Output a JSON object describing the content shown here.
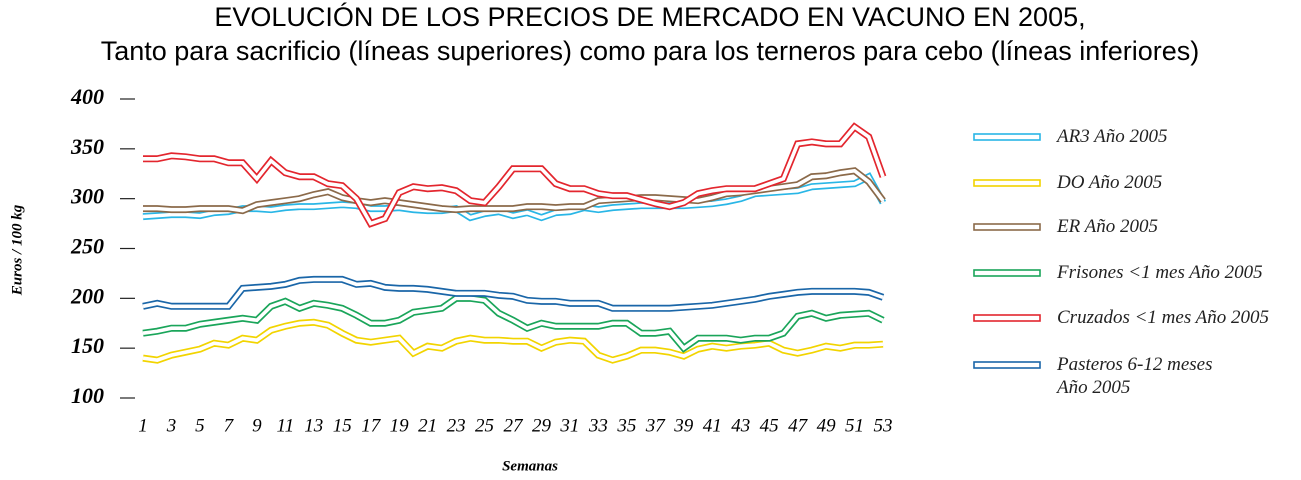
{
  "chart_data": {
    "type": "line",
    "title": "EVOLUCIÓN DE LOS PRECIOS DE MERCADO EN VACUNO EN 2005,",
    "subtitle": "Tanto para sacrificio (líneas superiores) como para los terneros para cebo (líneas inferiores)",
    "x_label": "Semanas",
    "y_label": "Euros / 100 kg",
    "x": [
      1,
      2,
      3,
      4,
      5,
      6,
      7,
      8,
      9,
      10,
      11,
      12,
      13,
      14,
      15,
      16,
      17,
      18,
      19,
      20,
      21,
      22,
      23,
      24,
      25,
      26,
      27,
      28,
      29,
      30,
      31,
      32,
      33,
      34,
      35,
      36,
      37,
      38,
      39,
      40,
      41,
      42,
      43,
      44,
      45,
      46,
      47,
      48,
      49,
      50,
      51,
      52,
      53
    ],
    "xlim": [
      1,
      53
    ],
    "xticks": [
      1,
      3,
      5,
      7,
      9,
      11,
      13,
      15,
      17,
      19,
      21,
      23,
      25,
      27,
      29,
      31,
      33,
      35,
      37,
      39,
      41,
      43,
      45,
      47,
      49,
      51,
      53
    ],
    "ylim": [
      100,
      400
    ],
    "yticks": [
      100,
      150,
      200,
      250,
      300,
      350,
      400
    ],
    "grid": false,
    "legend": "right",
    "series": [
      {
        "name": "AR3 Año 2005",
        "color": "#29b6e6",
        "values": [
          282,
          283,
          284,
          284,
          283,
          286,
          287,
          290,
          290,
          289,
          291,
          292,
          292,
          293,
          294,
          293,
          290,
          290,
          291,
          289,
          288,
          288,
          290,
          281,
          285,
          287,
          283,
          286,
          281,
          286,
          287,
          291,
          289,
          291,
          292,
          293,
          293,
          293,
          293,
          294,
          295,
          297,
          300,
          305,
          306,
          307,
          308,
          312,
          313,
          314,
          315,
          322,
          296
        ]
      },
      {
        "name": "DO Año 2005",
        "color": "#f2d400",
        "values": [
          140,
          138,
          143,
          146,
          149,
          155,
          153,
          160,
          158,
          168,
          172,
          175,
          176,
          173,
          165,
          158,
          156,
          158,
          160,
          145,
          152,
          150,
          157,
          160,
          158,
          158,
          157,
          157,
          150,
          156,
          158,
          157,
          143,
          138,
          142,
          148,
          148,
          146,
          142,
          149,
          152,
          150,
          152,
          153,
          155,
          148,
          145,
          148,
          152,
          150,
          153,
          153,
          154
        ]
      },
      {
        "name": "ER Año 2005",
        "color": "#8b6a4a",
        "values": [
          290,
          290,
          289,
          289,
          290,
          290,
          290,
          288,
          294,
          296,
          298,
          300,
          304,
          307,
          301,
          298,
          296,
          298,
          296,
          294,
          292,
          290,
          289,
          290,
          290,
          290,
          290,
          292,
          292,
          291,
          292,
          292,
          298,
          299,
          300,
          301,
          301,
          300,
          299,
          298,
          301,
          305,
          306,
          308,
          310,
          312,
          314,
          322,
          323,
          326,
          328,
          317,
          298
        ]
      },
      {
        "name": "Frisones <1 mes Año 2005",
        "color": "#1aa55a",
        "values": [
          165,
          167,
          170,
          170,
          174,
          176,
          178,
          180,
          178,
          192,
          197,
          190,
          195,
          193,
          190,
          183,
          175,
          175,
          178,
          186,
          188,
          190,
          200,
          200,
          198,
          185,
          178,
          170,
          175,
          172,
          172,
          172,
          172,
          175,
          175,
          165,
          165,
          167,
          150,
          160,
          160,
          160,
          158,
          160,
          160,
          165,
          182,
          185,
          180,
          183,
          184,
          185,
          178
        ]
      },
      {
        "name": "Cruzados <1 mes Año 2005",
        "color": "#e3262e",
        "values": [
          340,
          340,
          343,
          342,
          340,
          340,
          336,
          336,
          320,
          338,
          326,
          322,
          322,
          315,
          313,
          300,
          275,
          280,
          306,
          312,
          310,
          311,
          308,
          298,
          296,
          312,
          330,
          330,
          330,
          315,
          310,
          310,
          305,
          303,
          303,
          299,
          295,
          292,
          296,
          305,
          308,
          310,
          310,
          310,
          315,
          320,
          355,
          357,
          355,
          355,
          372,
          362,
          322
        ]
      },
      {
        "name": "Pasteros 6-12 meses\nAño 2005",
        "color": "#1a66a8",
        "values": [
          192,
          195,
          192,
          192,
          192,
          192,
          192,
          210,
          211,
          212,
          214,
          218,
          219,
          219,
          219,
          214,
          215,
          211,
          210,
          210,
          209,
          207,
          205,
          205,
          205,
          203,
          202,
          198,
          197,
          197,
          195,
          195,
          195,
          190,
          190,
          190,
          190,
          190,
          191,
          192,
          193,
          195,
          197,
          199,
          202,
          204,
          206,
          207,
          207,
          207,
          207,
          206,
          201
        ]
      }
    ]
  }
}
